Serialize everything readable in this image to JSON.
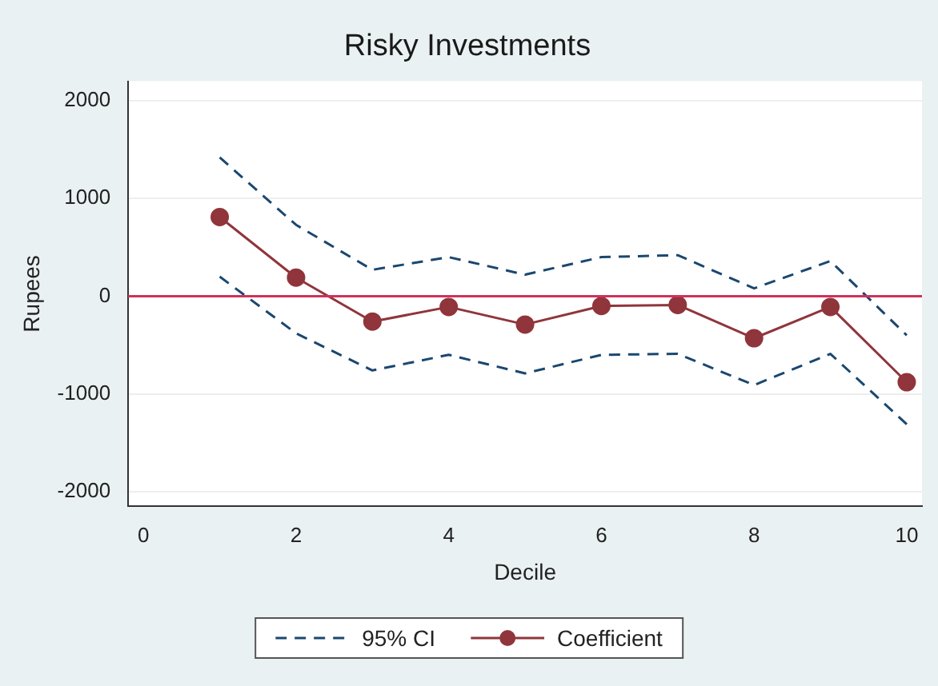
{
  "chart_data": {
    "type": "line",
    "title": "Risky Investments",
    "xlabel": "Decile",
    "ylabel": "Rupees",
    "x": [
      1,
      2,
      3,
      4,
      5,
      6,
      7,
      8,
      9,
      10
    ],
    "series": [
      {
        "name": "95% CI",
        "color": "#1a476f",
        "line_style": "dashed",
        "marker": "none",
        "values": [
          1420,
          730,
          270,
          400,
          220,
          400,
          420,
          80,
          360,
          -400
        ]
      },
      {
        "color": "#1a476f",
        "line_style": "dashed",
        "marker": "none",
        "values": [
          200,
          -380,
          -760,
          -600,
          -790,
          -600,
          -590,
          -910,
          -590,
          -1310
        ]
      },
      {
        "name": "Coefficient",
        "color": "#90353b",
        "line_style": "solid",
        "marker": "circle",
        "values": [
          810,
          190,
          -260,
          -110,
          -290,
          -100,
          -90,
          -430,
          -110,
          -880
        ]
      }
    ],
    "xlim": [
      -0.2,
      10.2
    ],
    "xticks": [
      0,
      2,
      4,
      6,
      8,
      10
    ],
    "ylim": [
      -2150,
      2200
    ],
    "yticks": [
      -2000,
      -1000,
      0,
      1000,
      2000
    ],
    "grid": "y",
    "legend": "bottom",
    "ref_lines": [
      {
        "axis": "y",
        "value": 0,
        "color": "#d0315a"
      }
    ]
  }
}
